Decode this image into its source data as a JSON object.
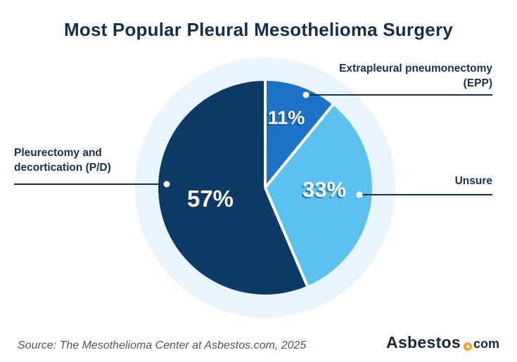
{
  "title": "Most Popular Pleural Mesothelioma Surgery",
  "chart_data": {
    "type": "pie",
    "title": "Most Popular Pleural Mesothelioma Surgery",
    "start_angle_deg": -90,
    "direction": "clockwise",
    "slices": [
      {
        "label": "Extrapleural pneumonectomy (EPP)",
        "value": 11,
        "display": "11%",
        "color": "#1D73C5"
      },
      {
        "label": "Unsure",
        "value": 33,
        "display": "33%",
        "color": "#5BC2EF"
      },
      {
        "label": "Pleurectomy and decortication (P/D)",
        "value": 57,
        "display": "57%",
        "color": "#0D3A66"
      }
    ],
    "halo_color": "#E9F4FC",
    "callout_line_color": "#16304E",
    "slice_gap_color": "#FFFFFF",
    "legend_position": "callouts"
  },
  "source": "Source: The Mesothelioma Center at Asbestos.com, 2025",
  "logo": {
    "name": "Asbestos",
    "tld": "com",
    "accent_color": "#F5A01D",
    "text_color": "#16283C"
  }
}
